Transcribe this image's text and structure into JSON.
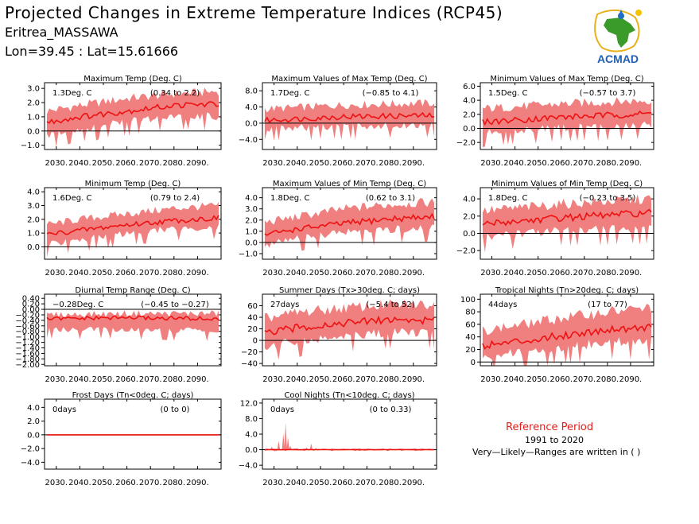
{
  "header": {
    "title": "Projected Changes in Extreme Temperature Indices (RCP45)",
    "location": "Eritrea_MASSAWA",
    "coords": "Lon=39.45 : Lat=15.61666",
    "logo_text": "ACMAD"
  },
  "reference": {
    "title": "Reference Period",
    "years": "1991 to 2020",
    "note": "Very—Likely—Ranges are written in ( )"
  },
  "colors": {
    "band": "#f08080",
    "line": "#ee1111",
    "zero": "#000000",
    "accent": "#e0201c"
  },
  "chart_data": [
    {
      "type": "line",
      "title": "Maximum Temp (Deg. C)",
      "mean_label": "1.3Deg. C",
      "range_label": "(0.34 to 2.2)",
      "xlim": [
        2025,
        2100
      ],
      "ylim": [
        -1.3,
        3.4
      ],
      "yticks": [
        -1.0,
        0.0,
        1.0,
        2.0,
        3.0
      ],
      "ytick_labels": [
        "−1.0",
        "0.0",
        "1.0",
        "2.0",
        "3.0"
      ],
      "mean_anchors": [
        [
          2026,
          0.6
        ],
        [
          2040,
          1.0
        ],
        [
          2060,
          1.4
        ],
        [
          2080,
          1.8
        ],
        [
          2099,
          1.9
        ]
      ],
      "low_anchors": [
        [
          2026,
          -0.3
        ],
        [
          2040,
          0.1
        ],
        [
          2060,
          0.6
        ],
        [
          2080,
          1.0
        ],
        [
          2099,
          1.0
        ]
      ],
      "high_anchors": [
        [
          2026,
          1.4
        ],
        [
          2040,
          1.8
        ],
        [
          2060,
          2.3
        ],
        [
          2080,
          2.6
        ],
        [
          2099,
          2.8
        ]
      ]
    },
    {
      "type": "line",
      "title": "Maximum Values of Max Temp (Deg. C)",
      "mean_label": "1.7Deg. C",
      "range_label": "(−0.85 to 4.1)",
      "xlim": [
        2025,
        2100
      ],
      "ylim": [
        -6.5,
        10
      ],
      "yticks": [
        -4.0,
        0.0,
        4.0,
        8.0
      ],
      "ytick_labels": [
        "−4.0",
        "0.0",
        "4.0",
        "8.0"
      ],
      "mean_anchors": [
        [
          2026,
          0.7
        ],
        [
          2060,
          1.6
        ],
        [
          2099,
          1.9
        ]
      ],
      "low_anchors": [
        [
          2026,
          -1.5
        ],
        [
          2060,
          -1.0
        ],
        [
          2099,
          -0.5
        ]
      ],
      "high_anchors": [
        [
          2026,
          3.5
        ],
        [
          2060,
          4.5
        ],
        [
          2099,
          5.0
        ]
      ]
    },
    {
      "type": "line",
      "title": "Minimum Values of Max Temp (Deg. C)",
      "mean_label": "1.5Deg. C",
      "range_label": "(−0.57 to 3.7)",
      "xlim": [
        2025,
        2100
      ],
      "ylim": [
        -3.0,
        6.5
      ],
      "yticks": [
        -2.0,
        0.0,
        2.0,
        4.0,
        6.0
      ],
      "ytick_labels": [
        "−2.0",
        "0.0",
        "2.0",
        "4.0",
        "6.0"
      ],
      "mean_anchors": [
        [
          2026,
          0.9
        ],
        [
          2060,
          1.6
        ],
        [
          2099,
          2.1
        ]
      ],
      "low_anchors": [
        [
          2026,
          -0.7
        ],
        [
          2060,
          0.0
        ],
        [
          2099,
          0.4
        ]
      ],
      "high_anchors": [
        [
          2026,
          2.8
        ],
        [
          2060,
          3.5
        ],
        [
          2099,
          4.0
        ]
      ]
    },
    {
      "type": "line",
      "title": "Minimum Temp (Deg. C)",
      "mean_label": "1.6Deg. C",
      "range_label": "(0.79 to 2.4)",
      "xlim": [
        2025,
        2100
      ],
      "ylim": [
        -0.9,
        4.3
      ],
      "yticks": [
        0.0,
        1.0,
        2.0,
        3.0,
        4.0
      ],
      "ytick_labels": [
        "0.0",
        "1.0",
        "2.0",
        "3.0",
        "4.0"
      ],
      "mean_anchors": [
        [
          2026,
          0.9
        ],
        [
          2040,
          1.2
        ],
        [
          2060,
          1.6
        ],
        [
          2080,
          1.9
        ],
        [
          2099,
          2.1
        ]
      ],
      "low_anchors": [
        [
          2026,
          0.1
        ],
        [
          2040,
          0.5
        ],
        [
          2060,
          0.9
        ],
        [
          2080,
          1.3
        ],
        [
          2099,
          1.4
        ]
      ],
      "high_anchors": [
        [
          2026,
          1.6
        ],
        [
          2040,
          2.0
        ],
        [
          2060,
          2.4
        ],
        [
          2080,
          2.8
        ],
        [
          2099,
          3.0
        ]
      ]
    },
    {
      "type": "line",
      "title": "Maximum Values of Min Temp (Deg. C)",
      "mean_label": "1.8Deg. C",
      "range_label": "(0.62 to 3.1)",
      "xlim": [
        2025,
        2100
      ],
      "ylim": [
        -1.5,
        4.9
      ],
      "yticks": [
        -1.0,
        0.0,
        1.0,
        2.0,
        3.0,
        4.0
      ],
      "ytick_labels": [
        "−1.0",
        "0.0",
        "1.0",
        "2.0",
        "3.0",
        "4.0"
      ],
      "mean_anchors": [
        [
          2026,
          0.7
        ],
        [
          2040,
          1.2
        ],
        [
          2060,
          1.7
        ],
        [
          2080,
          2.1
        ],
        [
          2099,
          2.3
        ]
      ],
      "low_anchors": [
        [
          2026,
          -0.3
        ],
        [
          2040,
          0.3
        ],
        [
          2060,
          0.8
        ],
        [
          2080,
          1.1
        ],
        [
          2099,
          1.3
        ]
      ],
      "high_anchors": [
        [
          2026,
          1.8
        ],
        [
          2040,
          2.3
        ],
        [
          2060,
          3.0
        ],
        [
          2080,
          3.4
        ],
        [
          2099,
          3.6
        ]
      ]
    },
    {
      "type": "line",
      "title": "Minimum Values of Min Temp (Deg. C)",
      "mean_label": "1.8Deg. C",
      "range_label": "(−0.23 to 3.5)",
      "xlim": [
        2025,
        2100
      ],
      "ylim": [
        -3.0,
        5.3
      ],
      "yticks": [
        -2.0,
        0.0,
        2.0,
        4.0
      ],
      "ytick_labels": [
        "−2.0",
        "0.0",
        "2.0",
        "4.0"
      ],
      "mean_anchors": [
        [
          2026,
          1.1
        ],
        [
          2060,
          1.8
        ],
        [
          2099,
          2.4
        ]
      ],
      "low_anchors": [
        [
          2026,
          -0.5
        ],
        [
          2060,
          0.2
        ],
        [
          2099,
          0.6
        ]
      ],
      "high_anchors": [
        [
          2026,
          2.6
        ],
        [
          2060,
          3.4
        ],
        [
          2099,
          4.0
        ]
      ]
    },
    {
      "type": "line",
      "title": "Diurnal Temp Range (Deg. C)",
      "mean_label": "−0.28Deg. C",
      "range_label": "(−0.45 to −0.27)",
      "xlim": [
        2025,
        2100
      ],
      "ylim": [
        -2.05,
        0.55
      ],
      "yticks": [
        -2.0,
        -1.8,
        -1.6,
        -1.4,
        -1.2,
        -1.0,
        -0.8,
        -0.6,
        -0.4,
        -0.2,
        0.0,
        0.2,
        0.4
      ],
      "ytick_labels": [
        "−2.00",
        "−1.80",
        "−1.60",
        "−1.40",
        "−1.20",
        "−1.00",
        "−0.80",
        "−0.60",
        "−0.40",
        "−0.20",
        "0.00",
        "0.20",
        "0.40"
      ],
      "mean_anchors": [
        [
          2026,
          -0.35
        ],
        [
          2060,
          -0.3
        ],
        [
          2099,
          -0.35
        ]
      ],
      "low_anchors": [
        [
          2026,
          -0.75
        ],
        [
          2060,
          -0.75
        ],
        [
          2099,
          -0.8
        ]
      ],
      "high_anchors": [
        [
          2026,
          -0.2
        ],
        [
          2060,
          -0.15
        ],
        [
          2099,
          -0.15
        ]
      ]
    },
    {
      "type": "line",
      "title": "Summer Days (Tx>30deg. C; days)",
      "mean_label": "27days",
      "range_label": "(−5.4 to 52)",
      "xlim": [
        2025,
        2100
      ],
      "ylim": [
        -44,
        80
      ],
      "yticks": [
        -40,
        -20,
        0,
        20,
        40,
        60
      ],
      "ytick_labels": [
        "−40",
        "−20",
        "0",
        "20",
        "40",
        "60"
      ],
      "mean_anchors": [
        [
          2026,
          12
        ],
        [
          2040,
          22
        ],
        [
          2060,
          30
        ],
        [
          2080,
          36
        ],
        [
          2099,
          34
        ]
      ],
      "low_anchors": [
        [
          2026,
          -12
        ],
        [
          2040,
          -2
        ],
        [
          2060,
          6
        ],
        [
          2080,
          12
        ],
        [
          2099,
          12
        ]
      ],
      "high_anchors": [
        [
          2026,
          38
        ],
        [
          2040,
          48
        ],
        [
          2060,
          56
        ],
        [
          2080,
          62
        ],
        [
          2099,
          62
        ]
      ]
    },
    {
      "type": "line",
      "title": "Tropical Nights (Tn>20deg. C; days)",
      "mean_label": "44days",
      "range_label": "(17 to 77)",
      "xlim": [
        2025,
        2100
      ],
      "ylim": [
        -6,
        108
      ],
      "yticks": [
        0,
        20,
        40,
        60,
        80,
        100
      ],
      "ytick_labels": [
        "0",
        "20",
        "40",
        "60",
        "80",
        "100"
      ],
      "mean_anchors": [
        [
          2026,
          26
        ],
        [
          2040,
          32
        ],
        [
          2060,
          42
        ],
        [
          2080,
          52
        ],
        [
          2099,
          56
        ]
      ],
      "low_anchors": [
        [
          2026,
          8
        ],
        [
          2040,
          14
        ],
        [
          2060,
          22
        ],
        [
          2080,
          30
        ],
        [
          2099,
          32
        ]
      ],
      "high_anchors": [
        [
          2026,
          50
        ],
        [
          2040,
          58
        ],
        [
          2060,
          70
        ],
        [
          2080,
          80
        ],
        [
          2099,
          86
        ]
      ]
    },
    {
      "type": "line",
      "title": "Frost Days (Tn<0deg. C; days)",
      "mean_label": "0days",
      "range_label": "(0 to 0)",
      "xlim": [
        2025,
        2100
      ],
      "ylim": [
        -5.0,
        5.2
      ],
      "yticks": [
        -4.0,
        -2.0,
        0.0,
        2.0,
        4.0
      ],
      "ytick_labels": [
        "−4.0",
        "−2.0",
        "0.0",
        "2.0",
        "4.0"
      ],
      "mean_anchors": [
        [
          2026,
          0
        ],
        [
          2099,
          0
        ]
      ],
      "low_anchors": [
        [
          2026,
          0
        ],
        [
          2099,
          0
        ]
      ],
      "high_anchors": [
        [
          2026,
          0
        ],
        [
          2099,
          0
        ]
      ]
    },
    {
      "type": "line",
      "title": "Cool Nights (Tn<10deg. C; days)",
      "mean_label": "0days",
      "range_label": "(0 to 0.33)",
      "xlim": [
        2025,
        2100
      ],
      "ylim": [
        -5.0,
        13
      ],
      "yticks": [
        -4.0,
        0.0,
        4.0,
        8.0,
        12.0
      ],
      "ytick_labels": [
        "−4.0",
        "0.0",
        "4.0",
        "8.0",
        "12.0"
      ],
      "mean_anchors": [
        [
          2026,
          0
        ],
        [
          2099,
          0
        ]
      ],
      "low_anchors": [
        [
          2026,
          0
        ],
        [
          2099,
          0
        ]
      ],
      "high_anchors": [
        [
          2026,
          0.2
        ],
        [
          2099,
          0.2
        ]
      ],
      "spikes": [
        [
          2029,
          0.8
        ],
        [
          2032,
          2.2
        ],
        [
          2034,
          4.2
        ],
        [
          2035,
          7.0
        ],
        [
          2036,
          3.2
        ],
        [
          2037,
          1.0
        ],
        [
          2040,
          0.4
        ],
        [
          2044,
          0.6
        ],
        [
          2046,
          1.6
        ],
        [
          2048,
          0.5
        ]
      ]
    }
  ],
  "x_axis": {
    "ticks": [
      2030,
      2040,
      2050,
      2060,
      2070,
      2080,
      2090
    ],
    "tick_labels": [
      "2030.",
      "2040.",
      "2050.",
      "2060.",
      "2070.",
      "2080.",
      "2090."
    ]
  }
}
